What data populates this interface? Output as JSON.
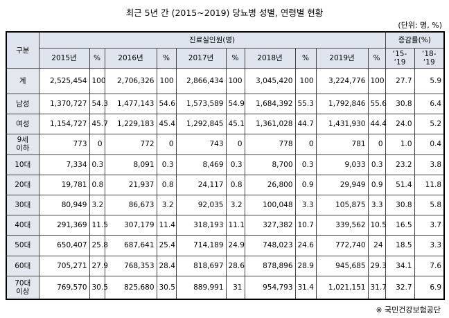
{
  "header": {
    "title": "최근 5년 간 (2015~2019) 당뇨병 성별, 연령별 현황",
    "unit": "(단위: 명, %)"
  },
  "table": {
    "group_label": "구분",
    "patients_label": "진료실인원(명)",
    "rate_label": "증감률(%)",
    "columns": [
      "2015년",
      "%",
      "2016년",
      "%",
      "2017년",
      "%",
      "2018년",
      "%",
      "2019년",
      "%",
      "‘15-\n‘19",
      "‘18-\n‘19"
    ],
    "rows": [
      [
        "계",
        "2,525,454",
        "100",
        "2,706,326",
        "100",
        "2,866,434",
        "100",
        "3,045,420",
        "100",
        "3,224,776",
        "100",
        "27.7",
        "5.9"
      ],
      [
        "남성",
        "1,370,727",
        "54.3",
        "1,477,143",
        "54.6",
        "1,573,589",
        "54.9",
        "1,684,392",
        "55.3",
        "1,792,846",
        "55.6",
        "30.8",
        "6.4"
      ],
      [
        "여성",
        "1,154,727",
        "45.7",
        "1,229,183",
        "45.4",
        "1,292,845",
        "45.1",
        "1,361,028",
        "44.7",
        "1,431,930",
        "44.4",
        "24.0",
        "5.2"
      ],
      [
        "9세\n이하",
        "773",
        "0",
        "772",
        "0",
        "743",
        "0",
        "778",
        "0",
        "781",
        "0",
        "1.0",
        "0.4"
      ],
      [
        "10대",
        "7,334",
        "0.3",
        "8,091",
        "0.3",
        "8,469",
        "0.3",
        "8,700",
        "0.3",
        "9,033",
        "0.3",
        "23.2",
        "3.8"
      ],
      [
        "20대",
        "19,781",
        "0.8",
        "21,937",
        "0.8",
        "24,117",
        "0.8",
        "26,800",
        "0.9",
        "29,949",
        "0.9",
        "51.4",
        "11.8"
      ],
      [
        "30대",
        "80,949",
        "3.2",
        "86,673",
        "3.2",
        "92,035",
        "3.2",
        "100,048",
        "3.3",
        "105,875",
        "3.3",
        "30.8",
        "5.8"
      ],
      [
        "40대",
        "291,369",
        "11.5",
        "307,179",
        "11.4",
        "318,193",
        "11.1",
        "327,382",
        "10.7",
        "339,562",
        "10.5",
        "16.5",
        "3.7"
      ],
      [
        "50대",
        "650,407",
        "25.8",
        "687,641",
        "25.4",
        "714,189",
        "24.9",
        "748,023",
        "24.6",
        "772,740",
        "24",
        "18.5",
        "3.3"
      ],
      [
        "60대",
        "705,271",
        "27.9",
        "768,353",
        "28.4",
        "818,697",
        "28.6",
        "878,896",
        "28.9",
        "945,685",
        "29.3",
        "34.1",
        "7.6"
      ],
      [
        "70대\n이상",
        "769,570",
        "30.5",
        "825,680",
        "30.5",
        "889,991",
        "31",
        "954,793",
        "31.4",
        "1,021,151",
        "31.7",
        "32.7",
        "6.9"
      ]
    ]
  },
  "footer": {
    "source": "※ 국민건강보험공단"
  }
}
